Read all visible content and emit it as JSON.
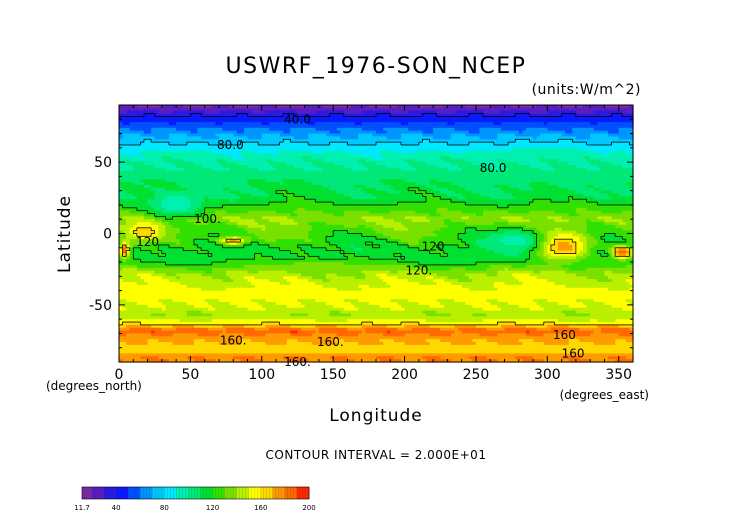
{
  "chart_data": {
    "type": "heatmap",
    "title": "USWRF_1976-SON_NCEP",
    "units": "(units:W/m^2)",
    "xlabel": "Longitude",
    "ylabel": "Latitude",
    "x_unit_label": "(degrees_east)",
    "y_unit_label": "(degrees_north)",
    "xlim": [
      0,
      360
    ],
    "ylim": [
      -90,
      90
    ],
    "x_ticks": [
      0,
      50,
      100,
      150,
      200,
      250,
      300,
      350
    ],
    "y_ticks": [
      -50,
      0,
      50
    ],
    "contour_interval_text": "CONTOUR INTERVAL = 2.000E+01",
    "contour_labels": [
      {
        "text": "40.0",
        "lon": 125,
        "lat": 80
      },
      {
        "text": "80.0",
        "lon": 78,
        "lat": 62
      },
      {
        "text": "80.0",
        "lon": 262,
        "lat": 46
      },
      {
        "text": "100.",
        "lon": 62,
        "lat": 10
      },
      {
        "text": "120",
        "lon": 20,
        "lat": -6
      },
      {
        "text": "120",
        "lon": 220,
        "lat": -9
      },
      {
        "text": "120.",
        "lon": 210,
        "lat": -26
      },
      {
        "text": "160.",
        "lon": 80,
        "lat": -75
      },
      {
        "text": "160.",
        "lon": 148,
        "lat": -76
      },
      {
        "text": "160.",
        "lon": 125,
        "lat": -90
      },
      {
        "text": "160",
        "lon": 312,
        "lat": -71
      },
      {
        "text": "160",
        "lon": 318,
        "lat": -84
      }
    ],
    "colorbar": {
      "min_label": "11.7",
      "tick_labels": [
        "40",
        "80",
        "120",
        "160",
        "200"
      ],
      "min": 11.7,
      "max": 200,
      "levels": [
        11.7,
        20,
        30,
        40,
        50,
        60,
        70,
        80,
        90,
        100,
        110,
        120,
        130,
        140,
        150,
        160,
        170,
        180,
        190,
        200
      ],
      "colors": [
        "#7e2aa8",
        "#5a1ec0",
        "#2a1ae0",
        "#0a1aff",
        "#0050ff",
        "#0094ff",
        "#00c8ff",
        "#00e8ff",
        "#00f0b0",
        "#00e878",
        "#00e030",
        "#30e000",
        "#7ae000",
        "#b8f000",
        "#ffff00",
        "#ffd800",
        "#ff9a00",
        "#ff6a00",
        "#ff2a00"
      ]
    },
    "zonal_field": [
      {
        "lat": 90,
        "value": 16
      },
      {
        "lat": 86,
        "value": 28
      },
      {
        "lat": 82,
        "value": 42
      },
      {
        "lat": 78,
        "value": 50
      },
      {
        "lat": 74,
        "value": 58
      },
      {
        "lat": 70,
        "value": 66
      },
      {
        "lat": 66,
        "value": 74
      },
      {
        "lat": 62,
        "value": 82
      },
      {
        "lat": 56,
        "value": 92
      },
      {
        "lat": 50,
        "value": 98
      },
      {
        "lat": 42,
        "value": 104
      },
      {
        "lat": 34,
        "value": 110
      },
      {
        "lat": 26,
        "value": 112
      },
      {
        "lat": 18,
        "value": 125
      },
      {
        "lat": 10,
        "value": 140
      },
      {
        "lat": 4,
        "value": 132
      },
      {
        "lat": -4,
        "value": 124
      },
      {
        "lat": -12,
        "value": 116
      },
      {
        "lat": -20,
        "value": 118
      },
      {
        "lat": -28,
        "value": 142
      },
      {
        "lat": -36,
        "value": 150
      },
      {
        "lat": -44,
        "value": 155
      },
      {
        "lat": -52,
        "value": 148
      },
      {
        "lat": -58,
        "value": 140
      },
      {
        "lat": -63,
        "value": 158
      },
      {
        "lat": -68,
        "value": 188
      },
      {
        "lat": -72,
        "value": 176
      },
      {
        "lat": -77,
        "value": 170
      },
      {
        "lat": -82,
        "value": 162
      },
      {
        "lat": -86,
        "value": 178
      },
      {
        "lat": -90,
        "value": 180
      }
    ],
    "features": [
      {
        "lon_range": [
          5,
          30
        ],
        "lat_range": [
          -5,
          8
        ],
        "value": 170
      },
      {
        "lon_range": [
          0,
          8
        ],
        "lat_range": [
          -18,
          -5
        ],
        "value": 185
      },
      {
        "lon_range": [
          70,
          90
        ],
        "lat_range": [
          -8,
          -2
        ],
        "value": 175
      },
      {
        "lon_range": [
          290,
          330
        ],
        "lat_range": [
          -20,
          2
        ],
        "value": 180
      },
      {
        "lon_range": [
          345,
          360
        ],
        "lat_range": [
          -18,
          -8
        ],
        "value": 192
      },
      {
        "lon_range": [
          20,
          60
        ],
        "lat_range": [
          10,
          30
        ],
        "value": 90
      },
      {
        "lon_range": [
          255,
          300
        ],
        "lat_range": [
          -15,
          5
        ],
        "value": 95
      },
      {
        "lon_range": [
          100,
          180
        ],
        "lat_range": [
          -28,
          -18
        ],
        "value": 135
      },
      {
        "lon_range": [
          255,
          330
        ],
        "lat_range": [
          35,
          60
        ],
        "value": 100
      }
    ]
  }
}
